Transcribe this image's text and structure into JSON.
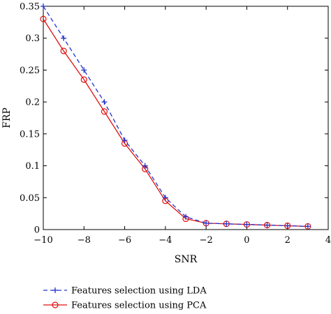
{
  "chart_data": {
    "type": "line",
    "xlabel": "SNR",
    "ylabel": "FRP",
    "xlim": [
      -10,
      4
    ],
    "ylim": [
      0,
      0.35
    ],
    "xticks": [
      -10,
      -8,
      -6,
      -4,
      -2,
      0,
      2,
      4
    ],
    "xtick_labels": [
      "−10",
      "−8",
      "−6",
      "−4",
      "−2",
      "0",
      "2",
      "4"
    ],
    "yticks": [
      0,
      0.05,
      0.1,
      0.15,
      0.2,
      0.25,
      0.3,
      0.35
    ],
    "ytick_labels": [
      "0",
      "0.05",
      "0.1",
      "0.15",
      "0.2",
      "0.25",
      "0.3",
      "0.35"
    ],
    "grid": false,
    "legend_position": "bottom",
    "series": [
      {
        "name": "Features selection using LDA",
        "color": "#2233cc",
        "line_style": "dashed",
        "marker": "plus",
        "x": [
          -10,
          -9,
          -8,
          -7,
          -6,
          -5,
          -4,
          -3,
          -2,
          -1,
          0,
          1,
          2,
          3
        ],
        "y": [
          0.35,
          0.3,
          0.25,
          0.2,
          0.14,
          0.1,
          0.05,
          0.02,
          0.01,
          0.009,
          0.008,
          0.007,
          0.006,
          0.005
        ]
      },
      {
        "name": "Features selection using PCA",
        "color": "#e01010",
        "line_style": "solid",
        "marker": "circle",
        "x": [
          -10,
          -9,
          -8,
          -7,
          -6,
          -5,
          -4,
          -3,
          -2,
          -1,
          0,
          1,
          2,
          3
        ],
        "y": [
          0.33,
          0.28,
          0.235,
          0.185,
          0.135,
          0.095,
          0.045,
          0.017,
          0.01,
          0.009,
          0.008,
          0.007,
          0.006,
          0.005
        ]
      }
    ]
  }
}
